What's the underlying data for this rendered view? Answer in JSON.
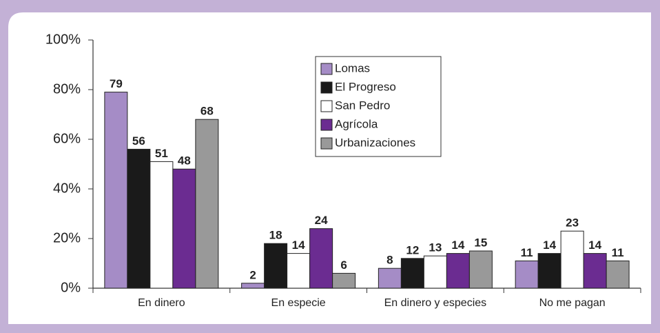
{
  "chart_data": {
    "type": "bar",
    "categories": [
      "En dinero",
      "En especie",
      "En dinero y especies",
      "No me pagan"
    ],
    "series": [
      {
        "name": "Lomas",
        "color": "#a58cc6",
        "values": [
          79,
          2,
          8,
          11
        ]
      },
      {
        "name": "El Progreso",
        "color": "#1a1a1a",
        "values": [
          56,
          18,
          12,
          14
        ]
      },
      {
        "name": "San Pedro",
        "color": "#ffffff",
        "values": [
          51,
          14,
          13,
          23
        ]
      },
      {
        "name": "Agrícola",
        "color": "#6b2c91",
        "values": [
          48,
          24,
          14,
          14
        ]
      },
      {
        "name": "Urbanizaciones",
        "color": "#999999",
        "values": [
          68,
          6,
          15,
          11
        ]
      }
    ],
    "ylim": [
      0,
      100
    ],
    "yticks": [
      {
        "value": 0,
        "label": "0%"
      },
      {
        "value": 20,
        "label": "20%"
      },
      {
        "value": 40,
        "label": "40%"
      },
      {
        "value": 60,
        "label": "60%"
      },
      {
        "value": 80,
        "label": "80%"
      },
      {
        "value": 100,
        "label": "100%"
      }
    ],
    "legend": "top-center"
  }
}
